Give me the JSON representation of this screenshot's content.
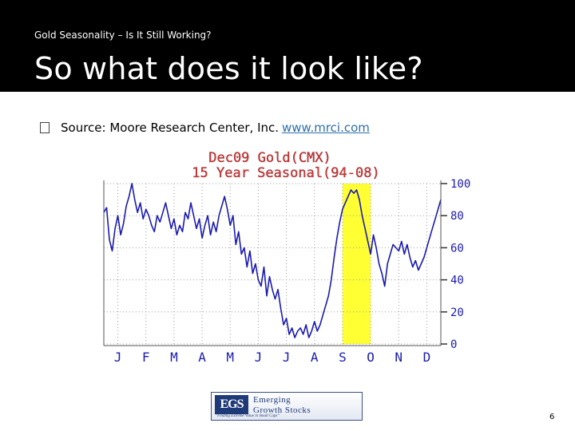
{
  "slide": {
    "breadcrumb": "Gold Seasonality – Is It Still Working?",
    "title": "So what does it look like?",
    "bullet_icon": "square-bullet-icon",
    "bullet_text": "Source: Moore Research Center, Inc.",
    "bullet_link": "www.mrci.com",
    "page_number": "6"
  },
  "logo": {
    "mark": "EGS",
    "line1": "Emerging",
    "line2": "Growth Stocks",
    "tagline": "\"Finding Extreme Value in Small Caps\""
  },
  "chart_data": {
    "type": "line",
    "title": "Dec09 Gold(CMX)",
    "subtitle": "15 Year Seasonal(94-08)",
    "xlabel": "",
    "ylabel": "",
    "x_ticks": [
      "J",
      "F",
      "M",
      "A",
      "M",
      "J",
      "J",
      "A",
      "S",
      "O",
      "N",
      "D"
    ],
    "y_ticks": [
      "100",
      "80",
      "60",
      "40",
      "20",
      "0"
    ],
    "ylim": [
      0,
      100
    ],
    "grid": true,
    "highlight": {
      "from_month": 8.5,
      "to_month": 9.5,
      "color": "#ffff33"
    },
    "series": [
      {
        "color": "#1a1ab0",
        "x": [
          0.0,
          0.1,
          0.2,
          0.3,
          0.4,
          0.5,
          0.6,
          0.7,
          0.8,
          0.9,
          1.0,
          1.1,
          1.2,
          1.3,
          1.4,
          1.5,
          1.6,
          1.7,
          1.8,
          1.9,
          2.0,
          2.1,
          2.2,
          2.3,
          2.4,
          2.5,
          2.6,
          2.7,
          2.8,
          2.9,
          3.0,
          3.1,
          3.2,
          3.3,
          3.4,
          3.5,
          3.6,
          3.7,
          3.8,
          3.9,
          4.0,
          4.1,
          4.2,
          4.3,
          4.4,
          4.5,
          4.6,
          4.7,
          4.8,
          4.9,
          5.0,
          5.1,
          5.2,
          5.3,
          5.4,
          5.5,
          5.6,
          5.7,
          5.8,
          5.9,
          6.0,
          6.1,
          6.2,
          6.3,
          6.4,
          6.5,
          6.6,
          6.7,
          6.8,
          6.9,
          7.0,
          7.1,
          7.2,
          7.3,
          7.4,
          7.5,
          7.6,
          7.7,
          7.8,
          7.9,
          8.0,
          8.1,
          8.2,
          8.3,
          8.4,
          8.5,
          8.6,
          8.7,
          8.8,
          8.9,
          9.0,
          9.1,
          9.2,
          9.3,
          9.4,
          9.5,
          9.6,
          9.7,
          9.8,
          9.9,
          10.0,
          10.1,
          10.2,
          10.3,
          10.4,
          10.5,
          10.6,
          10.7,
          10.8,
          10.9,
          11.0,
          11.1,
          11.2,
          11.3,
          11.4,
          11.5,
          11.6,
          11.7,
          11.8,
          11.9,
          12.0
        ],
        "values": [
          82,
          85,
          65,
          58,
          72,
          80,
          68,
          75,
          86,
          92,
          100,
          90,
          82,
          88,
          78,
          84,
          80,
          74,
          70,
          80,
          76,
          82,
          88,
          80,
          72,
          78,
          68,
          74,
          70,
          82,
          78,
          88,
          80,
          72,
          78,
          66,
          74,
          80,
          68,
          76,
          70,
          80,
          86,
          92,
          84,
          74,
          80,
          62,
          70,
          56,
          60,
          48,
          58,
          44,
          50,
          40,
          36,
          48,
          30,
          42,
          34,
          28,
          34,
          22,
          12,
          16,
          6,
          10,
          4,
          8,
          10,
          6,
          12,
          4,
          8,
          14,
          8,
          12,
          18,
          24,
          30,
          40,
          54,
          66,
          76,
          84,
          88,
          92,
          96,
          94,
          96,
          90,
          80,
          72,
          64,
          56,
          68,
          60,
          50,
          44,
          36,
          50,
          56,
          62,
          60,
          58,
          64,
          56,
          62,
          54,
          48,
          52,
          46,
          50,
          54,
          60,
          66,
          72,
          78,
          84,
          90
        ]
      }
    ]
  }
}
